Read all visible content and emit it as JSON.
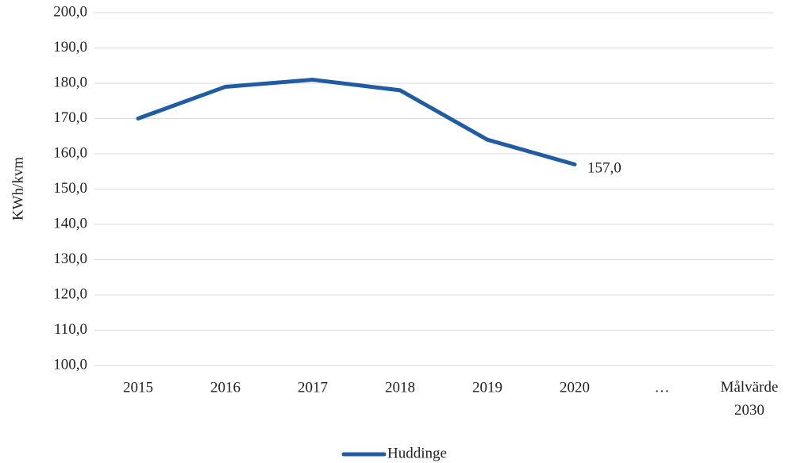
{
  "chart_data": {
    "type": "line",
    "ylabel": "KWh/kvm",
    "categories": [
      "2015",
      "2016",
      "2017",
      "2018",
      "2019",
      "2020",
      "…",
      "Målvärde 2030"
    ],
    "series": [
      {
        "name": "Huddinge",
        "color": "#1f5ca3",
        "values": [
          170,
          179,
          181,
          178,
          164,
          157,
          null,
          null
        ],
        "value_labels": [
          null,
          null,
          null,
          null,
          null,
          "157,0",
          null,
          null
        ]
      }
    ],
    "ylim": [
      100,
      200
    ],
    "yticks": [
      {
        "value": 100,
        "label": "100,0"
      },
      {
        "value": 110,
        "label": "110,0"
      },
      {
        "value": 120,
        "label": "120,0"
      },
      {
        "value": 130,
        "label": "130,0"
      },
      {
        "value": 140,
        "label": "140,0"
      },
      {
        "value": 150,
        "label": "150,0"
      },
      {
        "value": 160,
        "label": "160,0"
      },
      {
        "value": 170,
        "label": "170,0"
      },
      {
        "value": 180,
        "label": "180,0"
      },
      {
        "value": 190,
        "label": "190,0"
      },
      {
        "value": 200,
        "label": "200,0"
      }
    ],
    "grid": true,
    "legend": "bottom"
  }
}
